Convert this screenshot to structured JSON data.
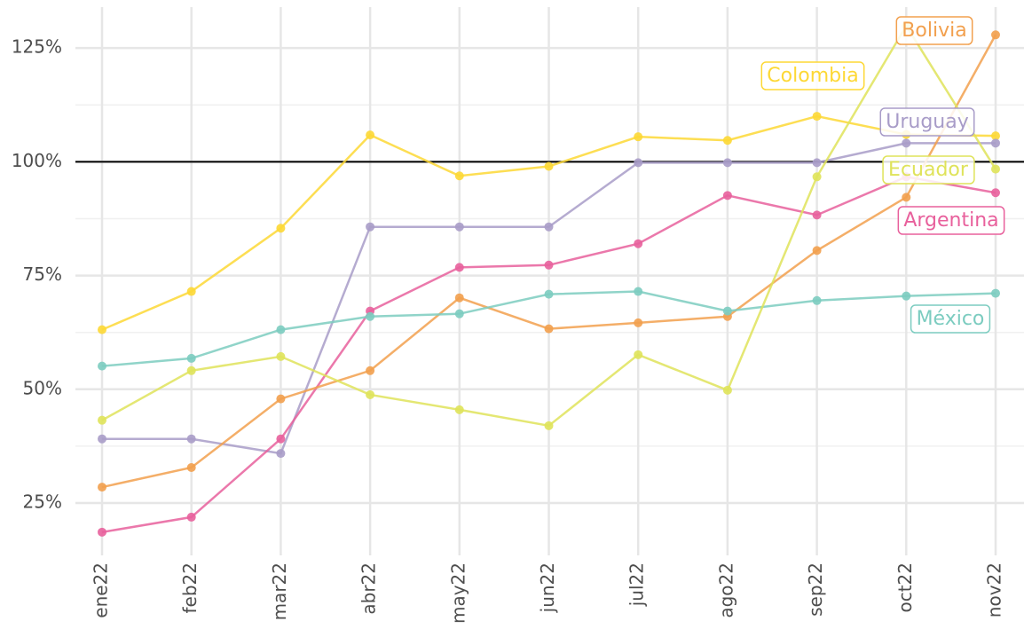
{
  "chart_data": {
    "type": "line",
    "categories": [
      "ene22",
      "feb22",
      "mar22",
      "abr22",
      "may22",
      "jun22",
      "jul22",
      "ago22",
      "sep22",
      "oct22",
      "nov22"
    ],
    "ylim": [
      13.5,
      134
    ],
    "yticks": [
      {
        "value": 25,
        "label": "25%"
      },
      {
        "value": 50,
        "label": "50%"
      },
      {
        "value": 75,
        "label": "75%"
      },
      {
        "value": 100,
        "label": "100%"
      },
      {
        "value": 125,
        "label": "125%"
      }
    ],
    "minor_yticks": [
      37.5,
      62.5,
      87.5,
      112.5
    ],
    "reference_line": 100,
    "grid": true,
    "series": [
      {
        "name": "Colombia",
        "color": "#fdd835",
        "values": [
          63.1,
          71.5,
          85.4,
          105.9,
          96.9,
          99.0,
          105.5,
          104.7,
          110.0,
          106.0,
          105.7
        ]
      },
      {
        "name": "Uruguay",
        "color": "#a89cc8",
        "values": [
          39.1,
          39.1,
          35.9,
          85.7,
          85.7,
          85.7,
          99.8,
          99.8,
          99.8,
          104.1,
          104.1
        ]
      },
      {
        "name": "Argentina",
        "color": "#e8609c",
        "values": [
          18.6,
          21.9,
          39.1,
          67.2,
          76.8,
          77.3,
          82.0,
          92.6,
          88.3,
          96.7,
          93.2
        ]
      },
      {
        "name": "Bolivia",
        "color": "#f2a04e",
        "values": [
          28.5,
          32.8,
          47.9,
          54.1,
          70.1,
          63.3,
          64.6,
          66.0,
          80.5,
          92.2,
          127.9
        ]
      },
      {
        "name": "México",
        "color": "#7cccc0",
        "values": [
          55.1,
          56.8,
          63.1,
          66.0,
          66.6,
          70.9,
          71.5,
          67.2,
          69.5,
          70.5,
          71.1
        ]
      },
      {
        "name": "Ecuador",
        "color": "#dfe35a",
        "values": [
          43.2,
          54.1,
          57.2,
          48.8,
          45.5,
          42.0,
          57.6,
          49.8,
          96.7,
          129.9,
          98.4
        ]
      }
    ]
  }
}
